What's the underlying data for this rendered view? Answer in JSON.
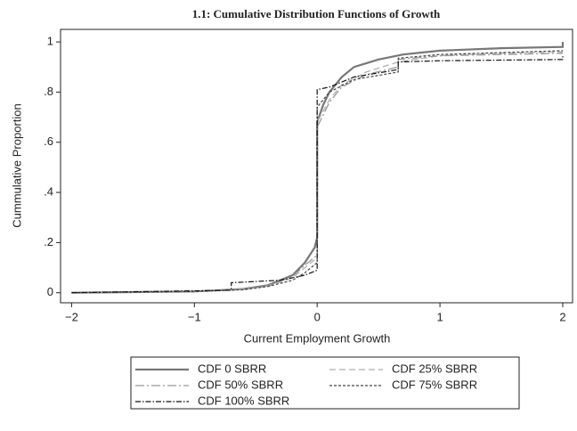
{
  "chart_data": {
    "type": "line",
    "title": "1.1: Cumulative Distribution Functions of Growth",
    "xlabel": "Current Employment Growth",
    "ylabel": "Cummulative Proportion",
    "xlim": [
      -2.09,
      2.08
    ],
    "ylim": [
      -0.04,
      1.05
    ],
    "xticks": [
      {
        "value": -2,
        "label": "−2"
      },
      {
        "value": -1,
        "label": "−1"
      },
      0,
      1,
      2
    ],
    "yticks": [
      0,
      {
        "value": 0.2,
        "label": ".2"
      },
      {
        "value": 0.4,
        "label": ".4"
      },
      {
        "value": 0.6,
        "label": ".6"
      },
      {
        "value": 0.8,
        "label": ".8"
      },
      1
    ],
    "series": [
      {
        "name": "CDF 0 SBRR",
        "color": "#777777",
        "dash": "none",
        "width": 2.2,
        "x": [
          -2,
          -1,
          -0.6,
          -0.4,
          -0.2,
          -0.1,
          -0.02,
          0,
          0,
          0.05,
          0.1,
          0.2,
          0.3,
          0.5,
          0.7,
          1,
          1.5,
          2,
          2
        ],
        "values": [
          0,
          0.005,
          0.015,
          0.03,
          0.07,
          0.12,
          0.18,
          0.22,
          0.68,
          0.75,
          0.8,
          0.86,
          0.9,
          0.93,
          0.95,
          0.965,
          0.975,
          0.98,
          1.0
        ]
      },
      {
        "name": "CDF 25% SBRR",
        "color": "#b0b0b0",
        "dash": "7,4",
        "width": 1.3,
        "x": [
          -2,
          -1,
          -0.6,
          -0.4,
          -0.2,
          -0.1,
          0,
          0,
          0.1,
          0.2,
          0.4,
          0.66,
          1,
          1.5,
          2
        ],
        "values": [
          0,
          0.005,
          0.015,
          0.025,
          0.06,
          0.1,
          0.14,
          0.68,
          0.77,
          0.83,
          0.88,
          0.92,
          0.945,
          0.955,
          0.96
        ]
      },
      {
        "name": "CDF 50% SBRR",
        "color": "#999999",
        "dash": "10,3,2,3",
        "width": 1.3,
        "x": [
          -2,
          -1,
          -0.6,
          -0.4,
          -0.2,
          -0.1,
          0,
          0,
          0.1,
          0.2,
          0.4,
          0.66,
          0.66,
          1,
          2
        ],
        "values": [
          0,
          0.005,
          0.015,
          0.028,
          0.065,
          0.11,
          0.15,
          0.66,
          0.76,
          0.82,
          0.87,
          0.9,
          0.93,
          0.945,
          0.955
        ]
      },
      {
        "name": "CDF 75% SBRR",
        "color": "#444444",
        "dash": "3,2",
        "width": 1.2,
        "x": [
          -2,
          -1,
          -0.6,
          -0.4,
          -0.2,
          -0.1,
          0,
          0,
          0.1,
          0.3,
          0.66,
          0.66,
          1,
          2
        ],
        "values": [
          0,
          0.005,
          0.012,
          0.025,
          0.05,
          0.08,
          0.12,
          0.74,
          0.8,
          0.85,
          0.88,
          0.935,
          0.95,
          0.965
        ]
      },
      {
        "name": "CDF 100% SBRR",
        "color": "#111111",
        "dash": "6,2,1.5,2",
        "width": 1.2,
        "x": [
          -2,
          -0.7,
          -0.7,
          -0.3,
          -0.1,
          0,
          0,
          0.1,
          0.2,
          0.3,
          0.66,
          0.66,
          1,
          2,
          2
        ],
        "values": [
          0,
          0.01,
          0.04,
          0.05,
          0.07,
          0.09,
          0.81,
          0.82,
          0.84,
          0.86,
          0.89,
          0.92,
          0.925,
          0.93,
          0.95
        ]
      }
    ]
  }
}
